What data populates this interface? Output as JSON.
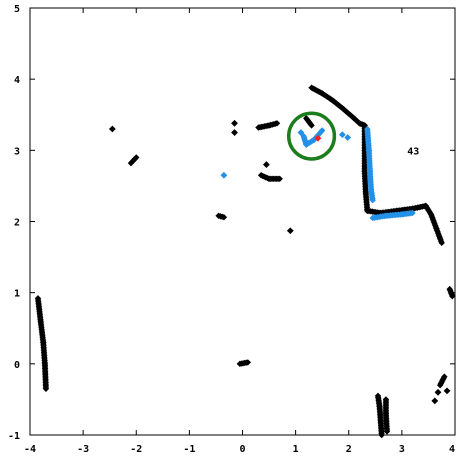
{
  "chart_data": {
    "type": "scatter",
    "title": "",
    "xlabel": "",
    "ylabel": "",
    "xlim": [
      -4,
      4
    ],
    "ylim": [
      -1,
      5
    ],
    "x_ticks": [
      "-4",
      "-3",
      "-2",
      "-1",
      "0",
      "1",
      "2",
      "3",
      "4"
    ],
    "y_ticks": [
      "-1",
      "0",
      "1",
      "2",
      "3",
      "4",
      "5"
    ],
    "grid": false,
    "legend": "none",
    "marker": "diamond",
    "annotations": [
      {
        "text": "43",
        "x": 3.1,
        "y": 3.0
      }
    ],
    "circle": {
      "center": [
        1.3,
        3.2
      ],
      "radius_x": 0.43,
      "color": "#1b7d1b"
    },
    "series": [
      {
        "color": "#000000",
        "segments": [
          [
            [
              1.3,
              3.88
            ],
            [
              1.5,
              3.8
            ],
            [
              1.7,
              3.7
            ],
            [
              1.9,
              3.58
            ],
            [
              2.1,
              3.45
            ],
            [
              2.2,
              3.38
            ],
            [
              2.3,
              3.35
            ]
          ],
          [
            [
              2.3,
              3.35
            ],
            [
              2.3,
              3.0
            ],
            [
              2.3,
              2.7
            ],
            [
              2.32,
              2.4
            ],
            [
              2.35,
              2.15
            ]
          ],
          [
            [
              2.35,
              2.15
            ],
            [
              2.6,
              2.12
            ],
            [
              2.9,
              2.15
            ],
            [
              3.2,
              2.18
            ],
            [
              3.45,
              2.22
            ]
          ],
          [
            [
              3.45,
              2.22
            ],
            [
              3.55,
              2.1
            ],
            [
              3.65,
              1.9
            ],
            [
              3.75,
              1.7
            ]
          ],
          [
            [
              -3.85,
              0.92
            ],
            [
              -3.8,
              0.6
            ],
            [
              -3.75,
              0.3
            ],
            [
              -3.72,
              0.0
            ],
            [
              -3.7,
              -0.35
            ]
          ],
          [
            [
              2.55,
              -0.45
            ],
            [
              2.58,
              -0.6
            ],
            [
              2.6,
              -0.8
            ],
            [
              2.62,
              -1.0
            ]
          ],
          [
            [
              2.7,
              -0.5
            ],
            [
              2.7,
              -0.7
            ],
            [
              2.72,
              -0.95
            ]
          ],
          [
            [
              -0.45,
              2.08
            ],
            [
              -0.35,
              2.06
            ]
          ],
          [
            [
              0.35,
              2.65
            ],
            [
              0.5,
              2.6
            ],
            [
              0.7,
              2.6
            ]
          ],
          [
            [
              0.3,
              3.32
            ],
            [
              0.5,
              3.35
            ],
            [
              0.65,
              3.38
            ]
          ],
          [
            [
              -0.05,
              0.0
            ],
            [
              0.1,
              0.02
            ]
          ],
          [
            [
              -2.1,
              2.82
            ],
            [
              -2.0,
              2.9
            ]
          ],
          [
            [
              1.2,
              3.45
            ],
            [
              1.3,
              3.35
            ]
          ],
          [
            [
              3.9,
              1.05
            ],
            [
              3.95,
              0.95
            ]
          ],
          [
            [
              3.72,
              -0.3
            ],
            [
              3.8,
              -0.18
            ]
          ]
        ],
        "points": [
          [
            -2.45,
            3.3
          ],
          [
            -0.15,
            3.38
          ],
          [
            -0.15,
            3.25
          ],
          [
            0.45,
            2.8
          ],
          [
            0.9,
            1.87
          ],
          [
            3.62,
            -0.52
          ],
          [
            3.68,
            -0.4
          ],
          [
            3.85,
            -0.38
          ]
        ]
      },
      {
        "color": "#2491e6",
        "segments": [
          [
            [
              2.35,
              3.3
            ],
            [
              2.38,
              3.0
            ],
            [
              2.4,
              2.7
            ],
            [
              2.42,
              2.45
            ],
            [
              2.45,
              2.3
            ]
          ],
          [
            [
              2.45,
              2.05
            ],
            [
              2.7,
              2.08
            ],
            [
              3.0,
              2.1
            ],
            [
              3.2,
              2.12
            ]
          ],
          [
            [
              1.15,
              3.2
            ],
            [
              1.2,
              3.08
            ],
            [
              1.35,
              3.15
            ],
            [
              1.5,
              3.28
            ]
          ]
        ],
        "points": [
          [
            -0.35,
            2.65
          ],
          [
            1.1,
            3.25
          ],
          [
            1.88,
            3.22
          ],
          [
            1.98,
            3.18
          ]
        ]
      },
      {
        "color": "#ff2020",
        "segments": [],
        "points": [
          [
            1.42,
            3.17
          ]
        ]
      }
    ]
  }
}
